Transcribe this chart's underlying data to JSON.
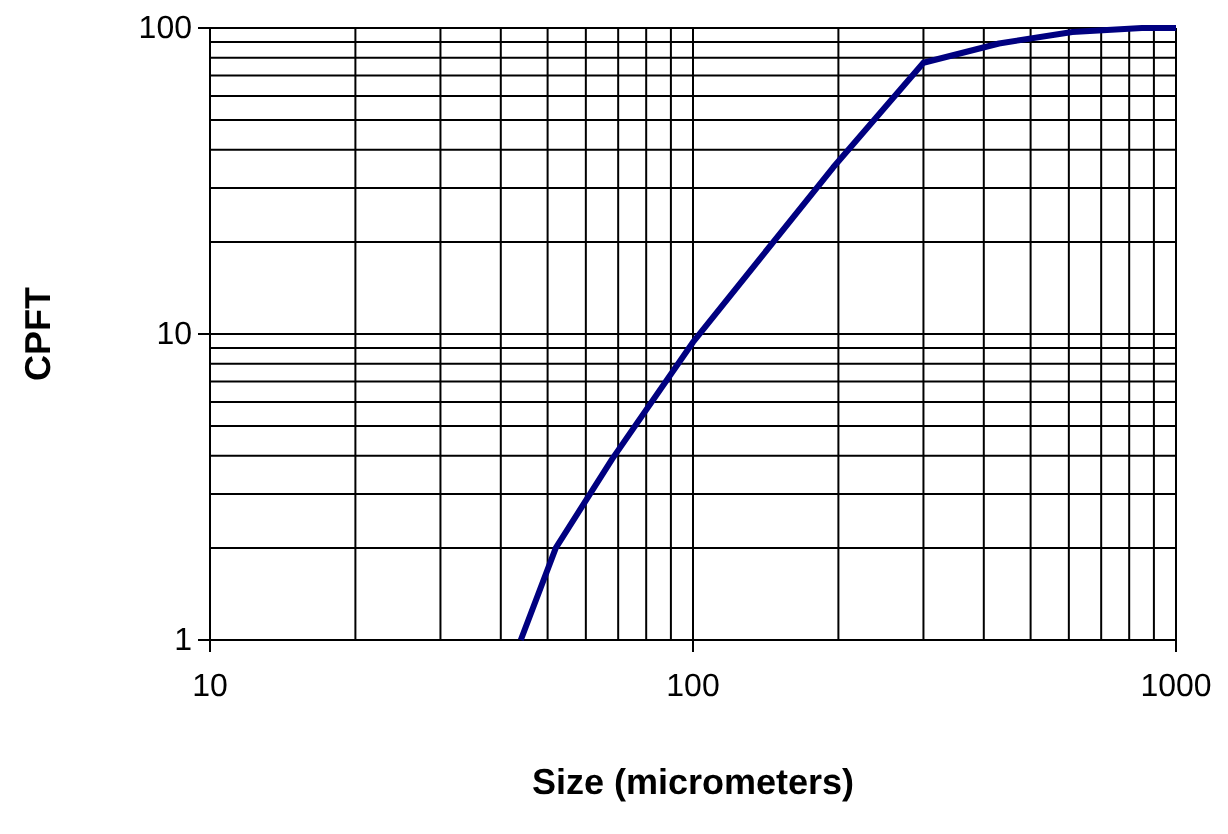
{
  "chart_data": {
    "type": "line",
    "xlabel": "Size (micrometers)",
    "ylabel": "CPFT",
    "log": "xy",
    "grid": true,
    "marker": "none",
    "line_style": "solid",
    "x": [
      44,
      52,
      68,
      100,
      195,
      300,
      430,
      610,
      850,
      1000
    ],
    "series": [
      {
        "color": "#000080",
        "values": [
          1,
          2,
          3.9,
          9.4,
          35,
          77,
          89,
          97,
          100,
          100
        ]
      }
    ],
    "xlim": [
      10,
      1000
    ],
    "xticks": [
      10,
      100,
      1000
    ],
    "ylim": [
      1,
      100
    ],
    "yticks": [
      1,
      10,
      100
    ]
  }
}
